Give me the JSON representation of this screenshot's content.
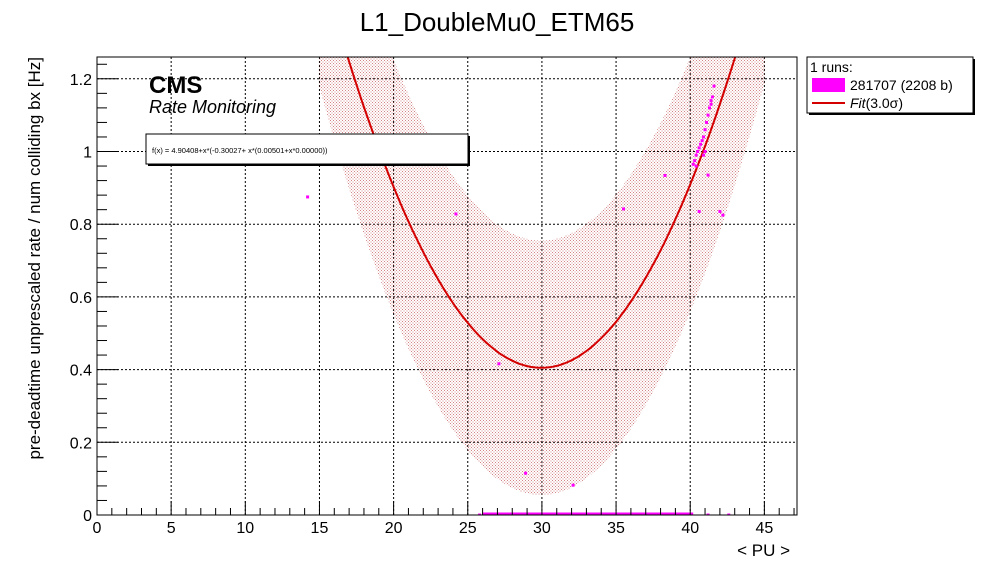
{
  "chart_data": {
    "type": "scatter",
    "title": "L1_DoubleMu0_ETM65",
    "xlabel": "< PU >",
    "ylabel": "pre-deadtime unprescaled rate / num colliding bx [Hz]",
    "xlim": [
      0,
      47.2
    ],
    "ylim": [
      0,
      1.26
    ],
    "x_ticks": [
      0,
      5,
      10,
      15,
      20,
      25,
      30,
      35,
      40,
      45
    ],
    "x_tick_labels": [
      "0",
      "5",
      "10",
      "15",
      "20",
      "25",
      "30",
      "35",
      "40",
      "45"
    ],
    "y_ticks": [
      0,
      0.2,
      0.4,
      0.6,
      0.8,
      1,
      1.2
    ],
    "y_tick_labels": [
      "0",
      "0.2",
      "0.4",
      "0.6",
      "0.8",
      "1",
      "1.2"
    ],
    "grid": true,
    "cms_label": "CMS",
    "subtitle": "Rate Monitoring",
    "fit_formula": "f(x) = 4.90408+x*(-0.30027+ x*(0.00501+x*0.00000))",
    "fit": {
      "coefficients": [
        4.90408,
        -0.30027,
        0.00501,
        0.0
      ],
      "x_range": [
        15.0,
        45.0
      ],
      "band_sigma": 3.0,
      "band_halfwidth": 0.35,
      "color": "#d40000",
      "band_color": "#b22222"
    },
    "legend": {
      "position": "top-right",
      "header": "1 runs:",
      "run_entry": "281707 (2208 b)",
      "fit_name": "Fit",
      "fit_suffix": "(3.0σ)"
    },
    "series": [
      {
        "name": "281707 (2208 b)",
        "color": "#ff00ff",
        "points": [
          [
            14.2,
            0.875
          ],
          [
            24.2,
            0.828
          ],
          [
            27.1,
            0.416
          ],
          [
            28.9,
            0.115
          ],
          [
            32.1,
            0.082
          ],
          [
            35.5,
            0.842
          ],
          [
            38.3,
            0.934
          ],
          [
            40.6,
            0.835
          ],
          [
            41.2,
            0.935
          ],
          [
            42.0,
            0.835
          ],
          [
            42.2,
            0.825
          ],
          [
            40.2,
            0.965
          ],
          [
            40.3,
            0.975
          ],
          [
            40.4,
            0.99
          ],
          [
            40.5,
            1.0
          ],
          [
            40.6,
            1.01
          ],
          [
            40.7,
            1.02
          ],
          [
            40.8,
            1.03
          ],
          [
            40.9,
            1.04
          ],
          [
            41.0,
            1.06
          ],
          [
            41.1,
            1.08
          ],
          [
            41.2,
            1.1
          ],
          [
            41.3,
            1.12
          ],
          [
            41.4,
            1.13
          ],
          [
            41.5,
            1.15
          ],
          [
            41.6,
            1.18
          ],
          [
            41.4,
            1.14
          ],
          [
            41.0,
            1.0
          ],
          [
            40.9,
            0.99
          ],
          [
            40.4,
            0.96
          ],
          [
            25.8,
            0.0
          ],
          [
            26.5,
            0.0
          ],
          [
            27.5,
            0.0
          ],
          [
            28.5,
            0.0
          ],
          [
            29.5,
            0.0
          ],
          [
            30.5,
            0.0
          ],
          [
            31.5,
            0.0
          ],
          [
            32.5,
            0.0
          ],
          [
            33.5,
            0.0
          ],
          [
            34.5,
            0.0
          ],
          [
            35.5,
            0.0
          ],
          [
            36.5,
            0.0
          ],
          [
            37.5,
            0.0
          ],
          [
            38.5,
            0.0
          ],
          [
            39.5,
            0.0
          ],
          [
            41.2,
            0.0
          ],
          [
            42.6,
            0.0
          ]
        ],
        "zero_bar": [
          26.0,
          40.2
        ]
      }
    ]
  }
}
